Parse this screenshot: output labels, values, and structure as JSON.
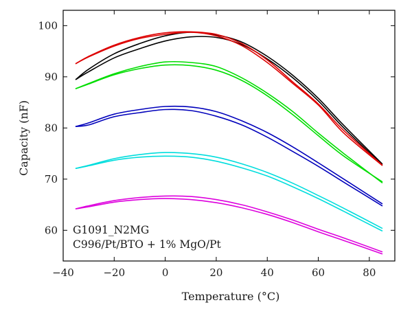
{
  "chart_data": {
    "type": "line",
    "title": "",
    "xlabel": "Temperature (°C)",
    "ylabel": "Capacity (nF)",
    "xlim": [
      -40,
      90
    ],
    "ylim": [
      54,
      103
    ],
    "xticks": [
      -40,
      -20,
      0,
      20,
      40,
      60,
      80
    ],
    "yticks": [
      60,
      70,
      80,
      90,
      100
    ],
    "xtick_labels": [
      "−40",
      "−20",
      "0",
      "20",
      "40",
      "60",
      "80"
    ],
    "ytick_labels": [
      "60",
      "70",
      "80",
      "90",
      "100"
    ],
    "grid": false,
    "legend": null,
    "annotations": [
      "G1091_N2MG",
      "C996/Pt/BTO + 1% MgO/Pt"
    ],
    "series": [
      {
        "color": "#000000",
        "x": [
          -35,
          -30,
          -20,
          -10,
          0,
          10,
          20,
          30,
          40,
          50,
          60,
          70,
          85
        ],
        "y": [
          89.5,
          91.5,
          94.5,
          96.5,
          98.0,
          98.7,
          98.2,
          96.8,
          94.0,
          90.3,
          85.8,
          80.5,
          73.0
        ]
      },
      {
        "color": "#000000",
        "x": [
          -35,
          -30,
          -20,
          -10,
          0,
          10,
          20,
          30,
          40,
          50,
          60,
          70,
          85
        ],
        "y": [
          89.5,
          91.0,
          93.7,
          95.5,
          97.0,
          97.8,
          97.7,
          96.3,
          93.5,
          89.8,
          85.3,
          80.0,
          72.8
        ]
      },
      {
        "color": "#dd0000",
        "x": [
          -35,
          -30,
          -20,
          -10,
          0,
          10,
          20,
          30,
          40,
          50,
          60,
          70,
          85
        ],
        "y": [
          92.6,
          94.0,
          96.2,
          97.7,
          98.6,
          98.8,
          98.3,
          96.5,
          93.3,
          89.0,
          84.7,
          79.5,
          72.8
        ]
      },
      {
        "color": "#dd0000",
        "x": [
          -35,
          -30,
          -20,
          -10,
          0,
          10,
          20,
          30,
          40,
          50,
          60,
          70,
          85
        ],
        "y": [
          92.6,
          93.9,
          96.0,
          97.5,
          98.3,
          98.7,
          98.0,
          96.1,
          92.8,
          88.7,
          84.5,
          79.0,
          72.7
        ]
      },
      {
        "color": "#00dd00",
        "x": [
          -35,
          -30,
          -20,
          -10,
          0,
          10,
          20,
          30,
          40,
          50,
          60,
          70,
          85
        ],
        "y": [
          87.7,
          88.7,
          90.6,
          92.0,
          92.9,
          92.8,
          92.0,
          89.8,
          86.8,
          83.2,
          79.0,
          75.0,
          69.3
        ]
      },
      {
        "color": "#00dd00",
        "x": [
          -35,
          -30,
          -20,
          -10,
          0,
          10,
          20,
          30,
          40,
          50,
          60,
          70,
          85
        ],
        "y": [
          87.7,
          88.6,
          90.4,
          91.6,
          92.3,
          92.2,
          91.3,
          89.3,
          86.3,
          82.6,
          78.5,
          74.5,
          69.5
        ]
      },
      {
        "color": "#0000bb",
        "x": [
          -35,
          -30,
          -20,
          -10,
          0,
          10,
          20,
          30,
          40,
          50,
          60,
          70,
          85
        ],
        "y": [
          80.3,
          81.0,
          82.7,
          83.6,
          84.2,
          84.1,
          83.2,
          81.4,
          79.1,
          76.3,
          73.2,
          70.0,
          65.2
        ]
      },
      {
        "color": "#0000bb",
        "x": [
          -35,
          -30,
          -20,
          -10,
          0,
          10,
          20,
          30,
          40,
          50,
          60,
          70,
          85
        ],
        "y": [
          80.3,
          80.6,
          82.2,
          83.0,
          83.6,
          83.4,
          82.3,
          80.6,
          78.2,
          75.4,
          72.5,
          69.4,
          64.8
        ]
      },
      {
        "color": "#00dddd",
        "x": [
          -35,
          -30,
          -20,
          -10,
          0,
          10,
          20,
          30,
          40,
          50,
          60,
          70,
          85
        ],
        "y": [
          72.1,
          72.7,
          74.0,
          74.8,
          75.2,
          75.0,
          74.3,
          73.0,
          71.3,
          69.2,
          66.8,
          64.3,
          60.4
        ]
      },
      {
        "color": "#00dddd",
        "x": [
          -35,
          -30,
          -20,
          -10,
          0,
          10,
          20,
          30,
          40,
          50,
          60,
          70,
          85
        ],
        "y": [
          72.1,
          72.6,
          73.7,
          74.3,
          74.5,
          74.3,
          73.5,
          72.2,
          70.6,
          68.5,
          66.2,
          63.7,
          59.9
        ]
      },
      {
        "color": "#dd00dd",
        "x": [
          -35,
          -30,
          -20,
          -10,
          0,
          10,
          20,
          30,
          40,
          50,
          60,
          70,
          85
        ],
        "y": [
          64.2,
          64.8,
          65.8,
          66.4,
          66.7,
          66.6,
          66.0,
          65.0,
          63.6,
          62.0,
          60.2,
          58.5,
          55.8
        ]
      },
      {
        "color": "#dd00dd",
        "x": [
          -35,
          -30,
          -20,
          -10,
          0,
          10,
          20,
          30,
          40,
          50,
          60,
          70,
          85
        ],
        "y": [
          64.2,
          64.6,
          65.5,
          66.0,
          66.2,
          66.0,
          65.4,
          64.4,
          63.1,
          61.5,
          59.7,
          58.0,
          55.4
        ]
      }
    ]
  }
}
